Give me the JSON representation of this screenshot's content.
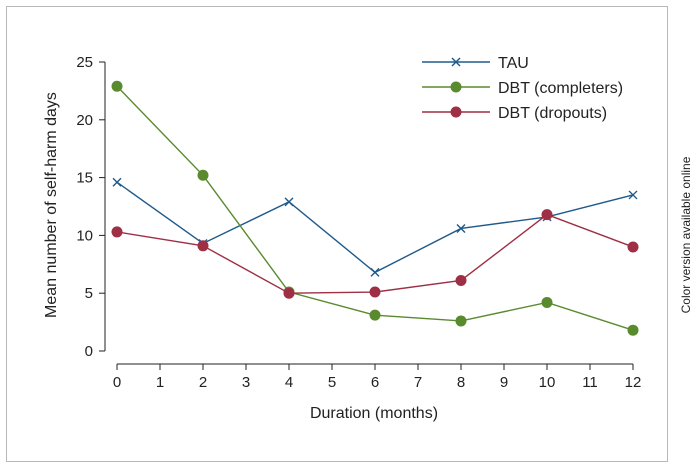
{
  "side_note": "Color version available online",
  "chart_data": {
    "type": "line",
    "title": "",
    "xlabel": "Duration (months)",
    "ylabel": "Mean number of self-harm days",
    "x": [
      0,
      2,
      4,
      6,
      8,
      10,
      12
    ],
    "xlim": [
      0,
      12
    ],
    "xticks": [
      0,
      1,
      2,
      3,
      4,
      5,
      6,
      7,
      8,
      9,
      10,
      11,
      12
    ],
    "ylim": [
      0,
      25
    ],
    "yticks": [
      0,
      5,
      10,
      15,
      20,
      25
    ],
    "grid": false,
    "legend_position": "top-right",
    "series": [
      {
        "name": "TAU",
        "marker": "x",
        "color": "#1f5a8a",
        "values": [
          14.6,
          9.3,
          12.9,
          6.8,
          10.6,
          11.6,
          13.5
        ]
      },
      {
        "name": "DBT (completers)",
        "marker": "circle",
        "color": "#5a8a2e",
        "values": [
          22.9,
          15.2,
          5.1,
          3.1,
          2.6,
          4.2,
          1.8
        ]
      },
      {
        "name": "DBT (dropouts)",
        "marker": "circle",
        "color": "#9e2f45",
        "values": [
          10.3,
          9.1,
          5.0,
          5.1,
          6.1,
          11.8,
          9.0
        ]
      }
    ]
  }
}
